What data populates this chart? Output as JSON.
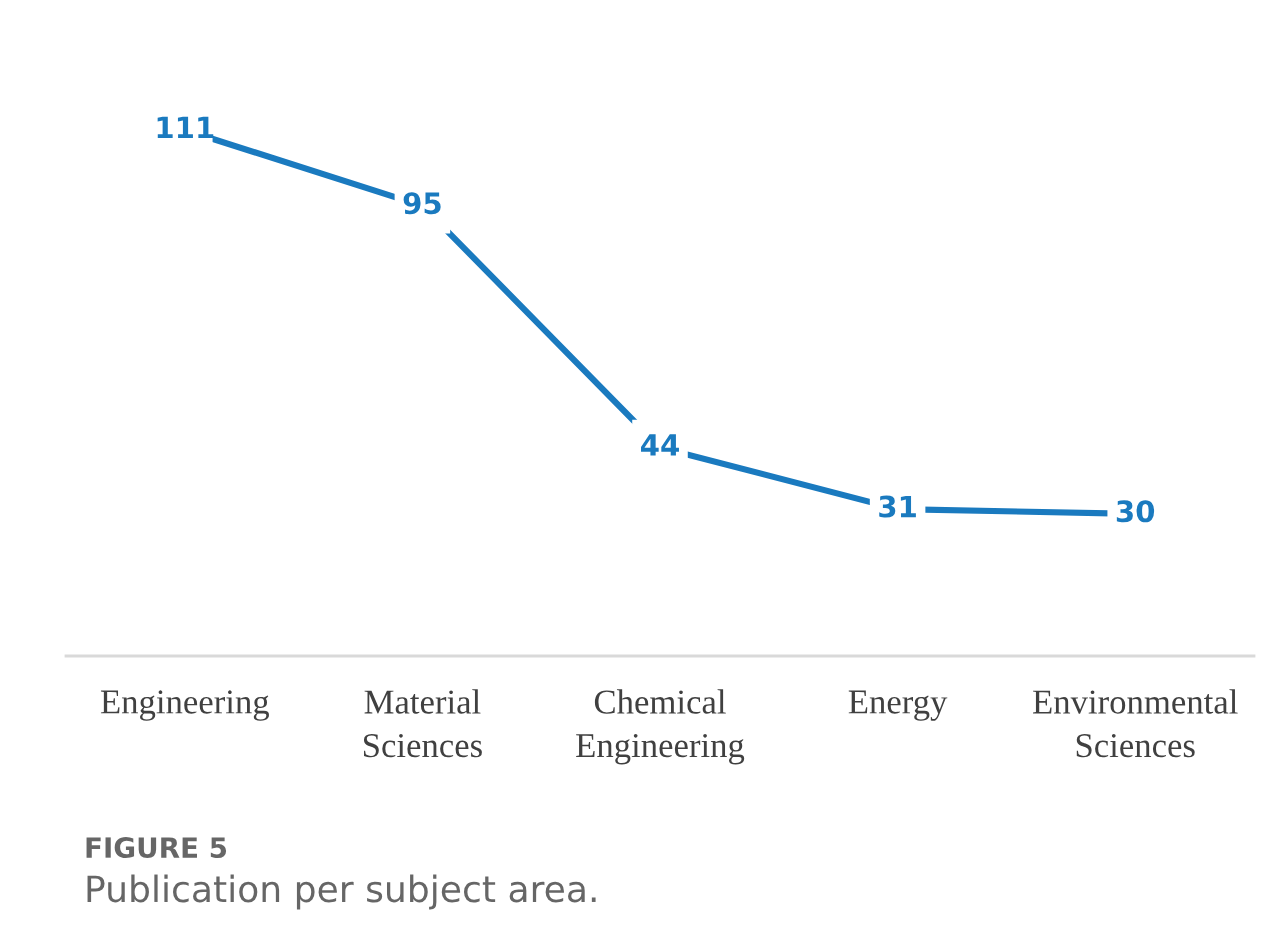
{
  "chart_data": {
    "type": "line",
    "categories": [
      "Engineering",
      "Material\nSciences",
      "Chemical\nEngineering",
      "Energy",
      "Environmental\nSciences"
    ],
    "values": [
      111,
      95,
      44,
      31,
      30
    ],
    "color": "#1a7abf",
    "data_labels": true,
    "marker": "square",
    "grid": false,
    "annotations": [
      "FIGURE 5",
      "Publication per subject area."
    ]
  }
}
